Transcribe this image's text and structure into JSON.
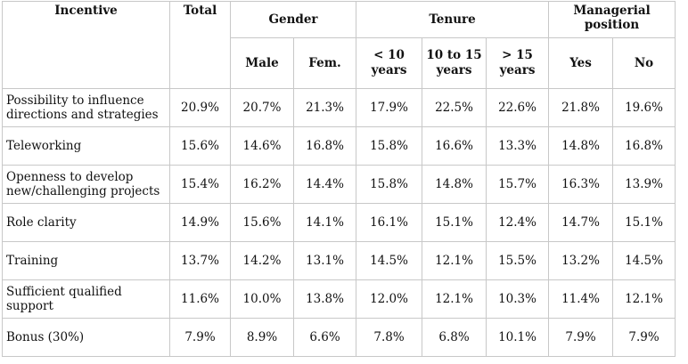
{
  "table": {
    "header": {
      "incentive": "Incentive",
      "total": "Total",
      "gender": "Gender",
      "tenure": "Tenure",
      "managerial": "Managerial position",
      "subheaders": [
        "Male",
        "Fem.",
        "< 10 years",
        "10 to 15 years",
        "> 15 years",
        "Yes",
        "No"
      ]
    },
    "rows": [
      [
        "Possibility to influence directions and strategies",
        "20.9%",
        "20.7%",
        "21.3%",
        "17.9%",
        "22.5%",
        "22.6%",
        "21.8%",
        "19.6%"
      ],
      [
        "Teleworking",
        "15.6%",
        "14.6%",
        "16.8%",
        "15.8%",
        "16.6%",
        "13.3%",
        "14.8%",
        "16.8%"
      ],
      [
        "Openness to develop new/challenging projects",
        "15.4%",
        "16.2%",
        "14.4%",
        "15.8%",
        "14.8%",
        "15.7%",
        "16.3%",
        "13.9%"
      ],
      [
        "Role clarity",
        "14.9%",
        "15.6%",
        "14.1%",
        "16.1%",
        "15.1%",
        "12.4%",
        "14.7%",
        "15.1%"
      ],
      [
        "Training",
        "13.7%",
        "14.2%",
        "13.1%",
        "14.5%",
        "12.1%",
        "15.5%",
        "13.2%",
        "14.5%"
      ],
      [
        "Sufficient qualified support",
        "11.6%",
        "10.0%",
        "13.8%",
        "12.0%",
        "12.1%",
        "10.3%",
        "11.4%",
        "12.1%"
      ],
      [
        "Bonus (30%)",
        "7.9%",
        "8.9%",
        "6.6%",
        "7.8%",
        "6.8%",
        "10.1%",
        "7.9%",
        "7.9%"
      ]
    ]
  }
}
